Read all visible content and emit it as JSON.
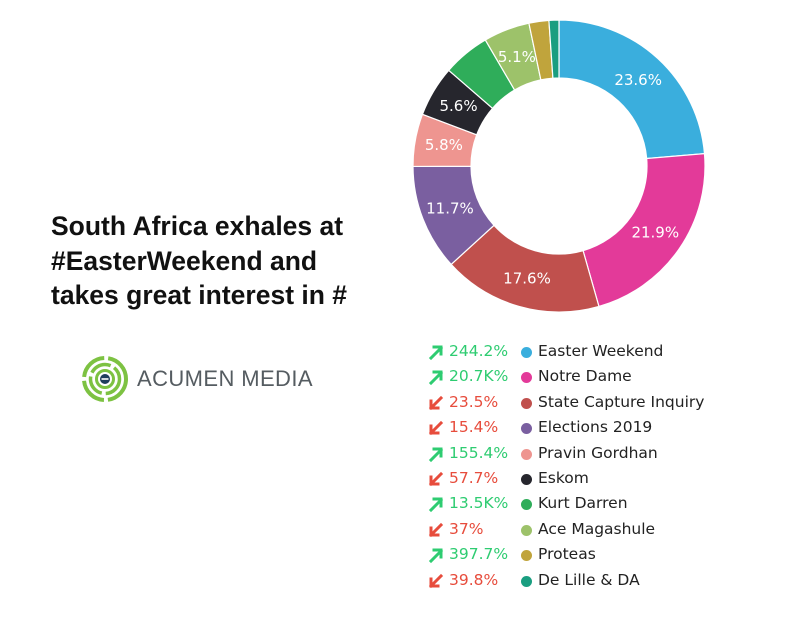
{
  "headline": "South Africa exhales at #EasterWeekend and takes great interest in #",
  "logo": {
    "text": "ACUMEN MEDIA",
    "icon": "maze-logo-icon",
    "colors": {
      "ring": "#7dc242",
      "center": "#1f3d5c"
    }
  },
  "chart_data": {
    "type": "pie",
    "donut": true,
    "legend": "bottom",
    "categories": [
      "Easter Weekend",
      "Notre Dame",
      "State Capture Inquiry",
      "Elections 2019",
      "Pravin Gordhan",
      "Eskom",
      "Kurt Darren",
      "Ace Magashule",
      "Proteas",
      "De Lille & DA"
    ],
    "values": [
      23.6,
      21.9,
      17.6,
      11.7,
      5.8,
      5.6,
      5.2,
      5.1,
      2.2,
      1.1
    ],
    "data_labels": [
      "23.6%",
      "21.9%",
      "17.6%",
      "11.7%",
      "5.8%",
      "5.6%",
      "",
      "5.1%",
      "",
      ""
    ],
    "colors": [
      "#3aaedd",
      "#e33a99",
      "#c0504d",
      "#7a5fa0",
      "#ee9590",
      "#26262d",
      "#2fad5a",
      "#9dc26a",
      "#c0a43c",
      "#1a9e80"
    ],
    "trend": [
      {
        "direction": "up",
        "value": "244.2%"
      },
      {
        "direction": "up",
        "value": "20.7K%"
      },
      {
        "direction": "down",
        "value": "23.5%"
      },
      {
        "direction": "down",
        "value": "15.4%"
      },
      {
        "direction": "up",
        "value": "155.4%"
      },
      {
        "direction": "down",
        "value": "57.7%"
      },
      {
        "direction": "up",
        "value": "13.5K%"
      },
      {
        "direction": "down",
        "value": "37%"
      },
      {
        "direction": "up",
        "value": "397.7%"
      },
      {
        "direction": "down",
        "value": "39.8%"
      }
    ],
    "trend_colors": {
      "up": "#2ecc71",
      "down": "#e74c3c"
    }
  }
}
